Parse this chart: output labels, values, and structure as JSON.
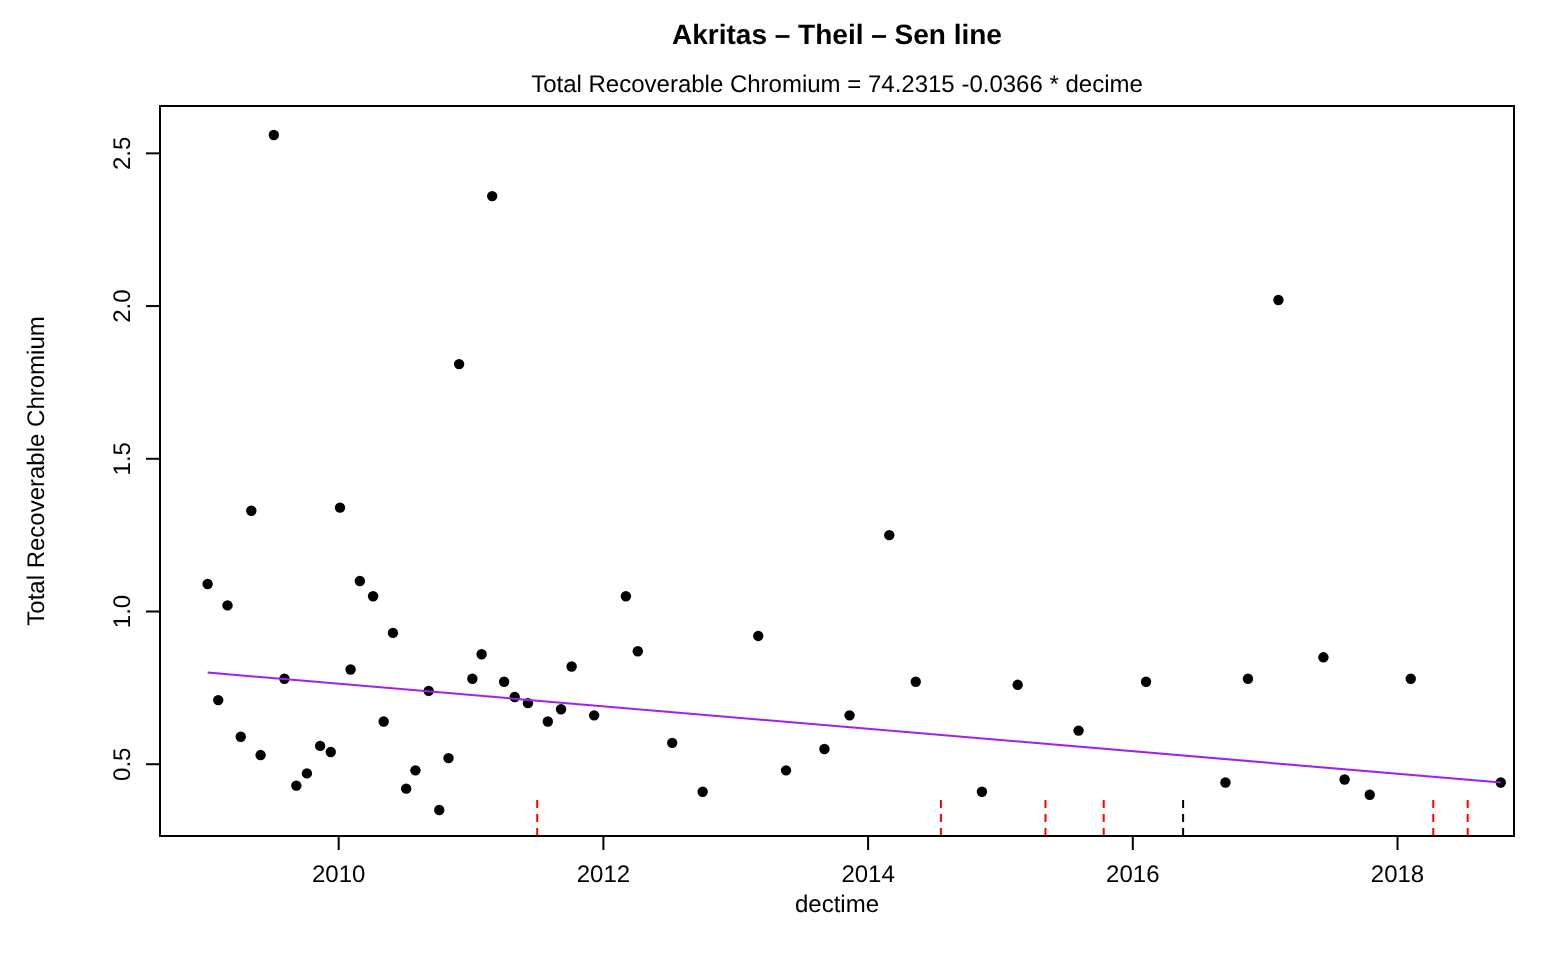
{
  "chart_data": {
    "type": "scatter",
    "title": "Akritas – Theil – Sen line",
    "subtitle": "Total Recoverable Chromium = 74.2315 -0.0366 * decime",
    "xlabel": "dectime",
    "ylabel": "Total Recoverable Chromium",
    "xlim": [
      2008.65,
      2018.88
    ],
    "ylim": [
      0.265,
      2.655
    ],
    "xticks": [
      2010,
      2012,
      2014,
      2016,
      2018
    ],
    "yticks": [
      0.5,
      {
        "value": 1,
        "label": "1.0"
      },
      1.5,
      {
        "value": 2,
        "label": "2.0"
      },
      2.5
    ],
    "grid": false,
    "series": [
      {
        "color": "#000000",
        "marker": "circle",
        "x": [
          2009.01,
          2009.09,
          2009.16,
          2009.26,
          2009.34,
          2009.41,
          2009.51,
          2009.59,
          2009.68,
          2009.76,
          2009.86,
          2009.94,
          2010.01,
          2010.09,
          2010.16,
          2010.26,
          2010.34,
          2010.41,
          2010.51,
          2010.58,
          2010.68,
          2010.76,
          2010.83,
          2010.91,
          2011.01,
          2011.08,
          2011.16,
          2011.25,
          2011.33,
          2011.43,
          2011.58,
          2011.68,
          2011.76,
          2011.93,
          2012.17,
          2012.26,
          2012.52,
          2012.75,
          2013.17,
          2013.38,
          2013.67,
          2013.86,
          2014.16,
          2014.36,
          2014.86,
          2015.13,
          2015.59,
          2016.1,
          2016.7,
          2016.87,
          2017.1,
          2017.44,
          2017.6,
          2017.79,
          2018.1,
          2018.78
        ],
        "values": [
          1.09,
          0.71,
          1.02,
          0.59,
          1.33,
          0.53,
          2.56,
          0.78,
          0.43,
          0.47,
          0.56,
          0.54,
          1.34,
          0.81,
          1.1,
          1.05,
          0.64,
          0.93,
          0.42,
          0.48,
          0.74,
          0.35,
          0.52,
          1.81,
          0.78,
          0.86,
          2.36,
          0.77,
          0.72,
          0.7,
          0.64,
          0.68,
          0.82,
          0.66,
          1.05,
          0.87,
          0.57,
          0.41,
          0.92,
          0.48,
          0.55,
          0.66,
          1.25,
          0.77,
          0.41,
          0.76,
          0.61,
          0.77,
          0.44,
          0.78,
          2.02,
          0.85,
          0.45,
          0.4,
          0.78,
          0.44
        ]
      },
      {
        "type": "line",
        "color": "#a020f0",
        "marker": "none",
        "line_style": "solid",
        "x": [
          2009.01,
          2018.78
        ],
        "values": [
          0.8,
          0.44
        ]
      },
      {
        "type": "line",
        "color": "#ff0000",
        "line_style": "dashed",
        "x": [
          2011.5,
          2011.5
        ],
        "values": [
          0.265,
          0.4
        ]
      },
      {
        "type": "line",
        "color": "#ff0000",
        "line_style": "dashed",
        "x": [
          2014.55,
          2014.55
        ],
        "values": [
          0.265,
          0.4
        ]
      },
      {
        "type": "line",
        "color": "#ff0000",
        "line_style": "dashed",
        "x": [
          2015.34,
          2015.34
        ],
        "values": [
          0.265,
          0.4
        ]
      },
      {
        "type": "line",
        "color": "#ff0000",
        "line_style": "dashed",
        "x": [
          2015.78,
          2015.78
        ],
        "values": [
          0.265,
          0.4
        ]
      },
      {
        "type": "line",
        "color": "#000000",
        "line_style": "dashed",
        "x": [
          2016.38,
          2016.38
        ],
        "values": [
          0.265,
          0.4
        ]
      },
      {
        "type": "line",
        "color": "#ff0000",
        "line_style": "dashed",
        "x": [
          2018.27,
          2018.27
        ],
        "values": [
          0.265,
          0.4
        ]
      },
      {
        "type": "line",
        "color": "#ff0000",
        "line_style": "dashed",
        "x": [
          2018.53,
          2018.53
        ],
        "values": [
          0.265,
          0.4
        ]
      }
    ]
  }
}
